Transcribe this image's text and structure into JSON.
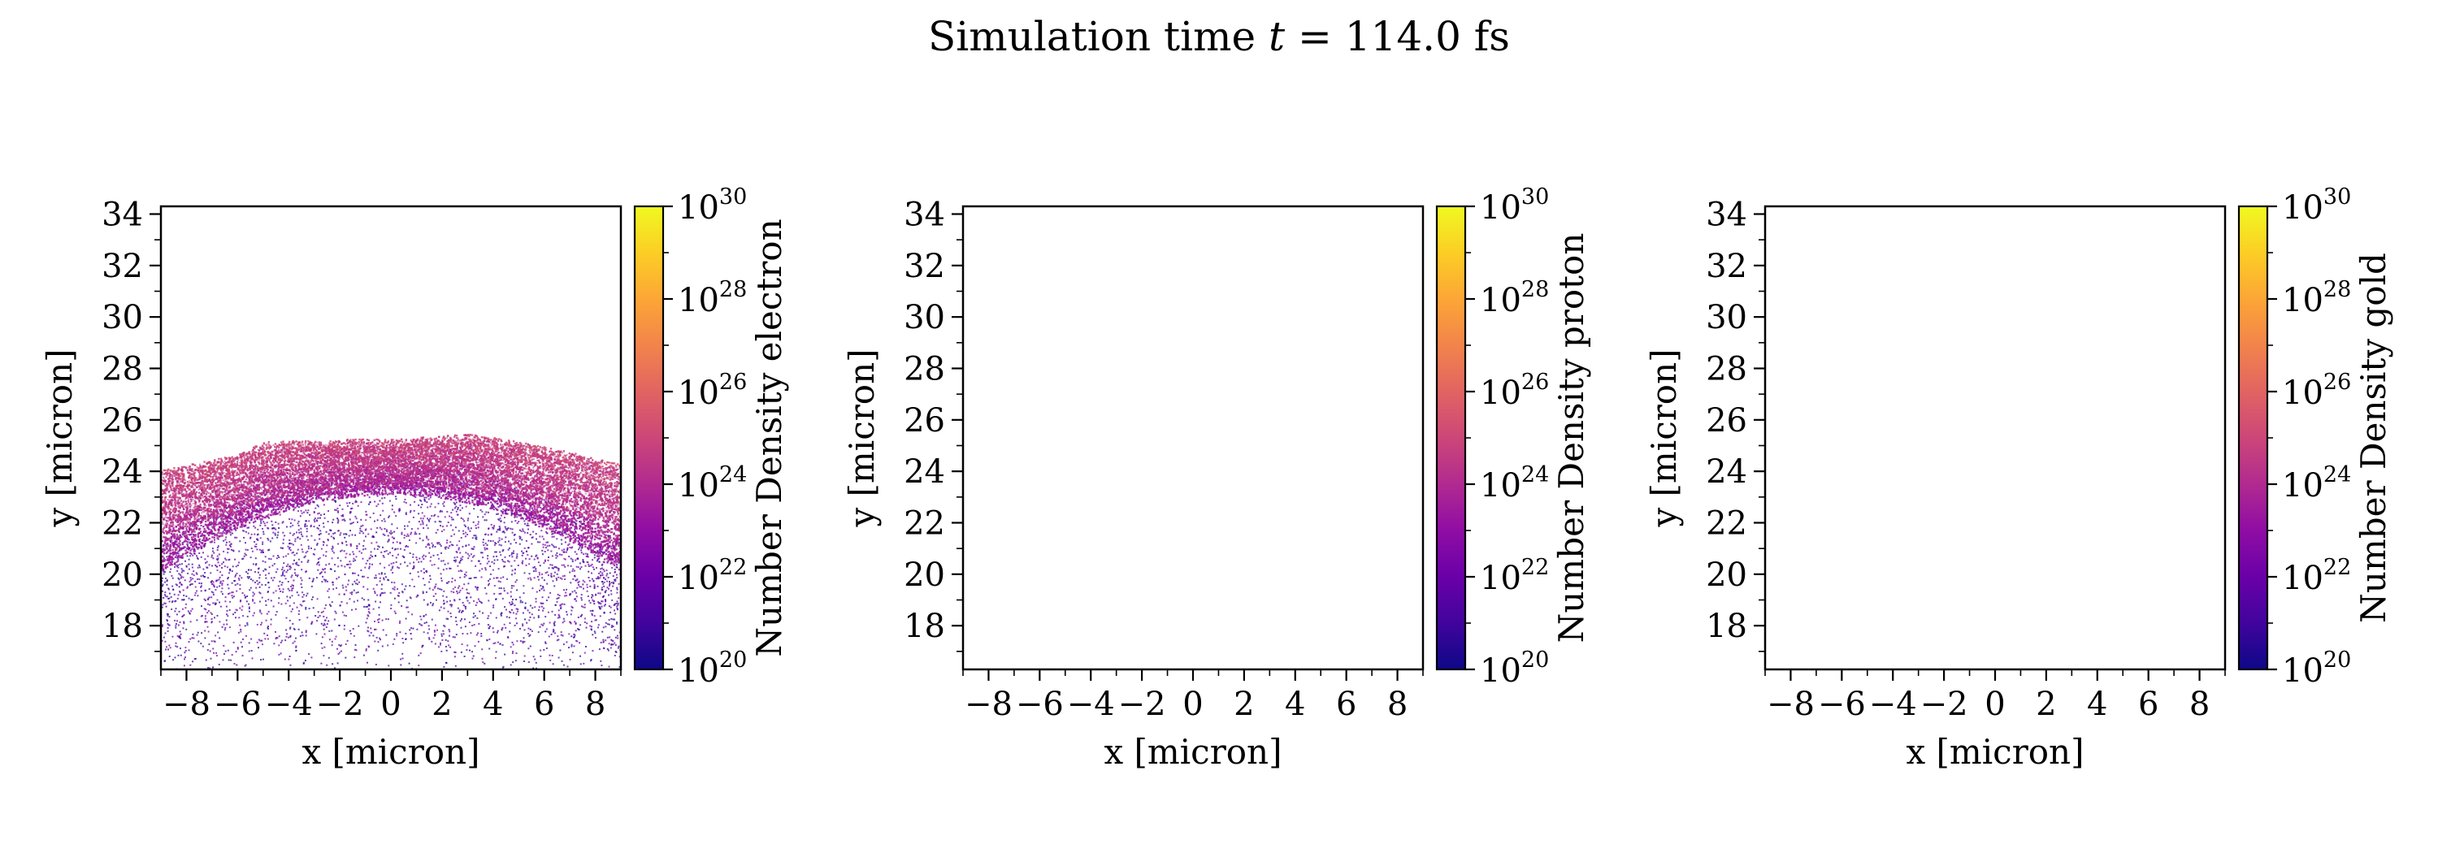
{
  "figure": {
    "title": "Simulation time t = 114.0 fs",
    "title_prefix": "Simulation time ",
    "title_var": "t",
    "title_suffix": " = 114.0 fs"
  },
  "colormap": {
    "name": "plasma",
    "stops": [
      "#0d0887",
      "#41049d",
      "#6a00a8",
      "#8f0da4",
      "#b12a90",
      "#cc4778",
      "#e16462",
      "#f2844b",
      "#fca636",
      "#fcce25",
      "#f0f921"
    ]
  },
  "chart_data": [
    {
      "type": "heatmap",
      "panel": "electron",
      "xlabel": "x [micron]",
      "ylabel": "y [micron]",
      "xlim": [
        -9,
        9
      ],
      "ylim": [
        16.3,
        34.3
      ],
      "xticks": [
        -8,
        -6,
        -4,
        -2,
        0,
        2,
        4,
        6,
        8
      ],
      "yticks": [
        18,
        20,
        22,
        24,
        26,
        28,
        30,
        32,
        34
      ],
      "colorbar": {
        "label": "Number Density electron",
        "scale": "log",
        "clim": [
          1e+20,
          1e+30
        ],
        "tick_exponents": [
          20,
          22,
          24,
          26,
          28,
          30
        ]
      },
      "density_profile": {
        "description": "dense layered band top edge",
        "top_edge_x": [
          -9,
          -6,
          -5,
          -2,
          0,
          3,
          5,
          7,
          9
        ],
        "top_edge_y": [
          24.0,
          24.6,
          25.1,
          25.2,
          25.2,
          25.4,
          25.1,
          24.7,
          24.2
        ],
        "band_lower_y_at_edges": 20.5,
        "band_lower_y_at_center": 23.5,
        "sparse_region_y": [
          16.3,
          23.0
        ],
        "peak_density_exponent": 25,
        "sparse_density_exponent": 21.5
      }
    },
    {
      "type": "heatmap",
      "panel": "proton",
      "xlabel": "x [micron]",
      "ylabel": "y [micron]",
      "xlim": [
        -9,
        9
      ],
      "ylim": [
        16.3,
        34.3
      ],
      "xticks": [
        -8,
        -6,
        -4,
        -2,
        0,
        2,
        4,
        6,
        8
      ],
      "yticks": [
        18,
        20,
        22,
        24,
        26,
        28,
        30,
        32,
        34
      ],
      "colorbar": {
        "label": "Number Density proton",
        "scale": "log",
        "clim": [
          1e+20,
          1e+30
        ],
        "tick_exponents": [
          20,
          22,
          24,
          26,
          28,
          30
        ]
      }
    },
    {
      "type": "heatmap",
      "panel": "gold",
      "xlabel": "x [micron]",
      "ylabel": "y [micron]",
      "xlim": [
        -9,
        9
      ],
      "ylim": [
        16.3,
        34.3
      ],
      "xticks": [
        -8,
        -6,
        -4,
        -2,
        0,
        2,
        4,
        6,
        8
      ],
      "yticks": [
        18,
        20,
        22,
        24,
        26,
        28,
        30,
        32,
        34
      ],
      "colorbar": {
        "label": "Number Density gold",
        "scale": "log",
        "clim": [
          1e+20,
          1e+30
        ],
        "tick_exponents": [
          20,
          22,
          24,
          26,
          28,
          30
        ]
      }
    }
  ]
}
